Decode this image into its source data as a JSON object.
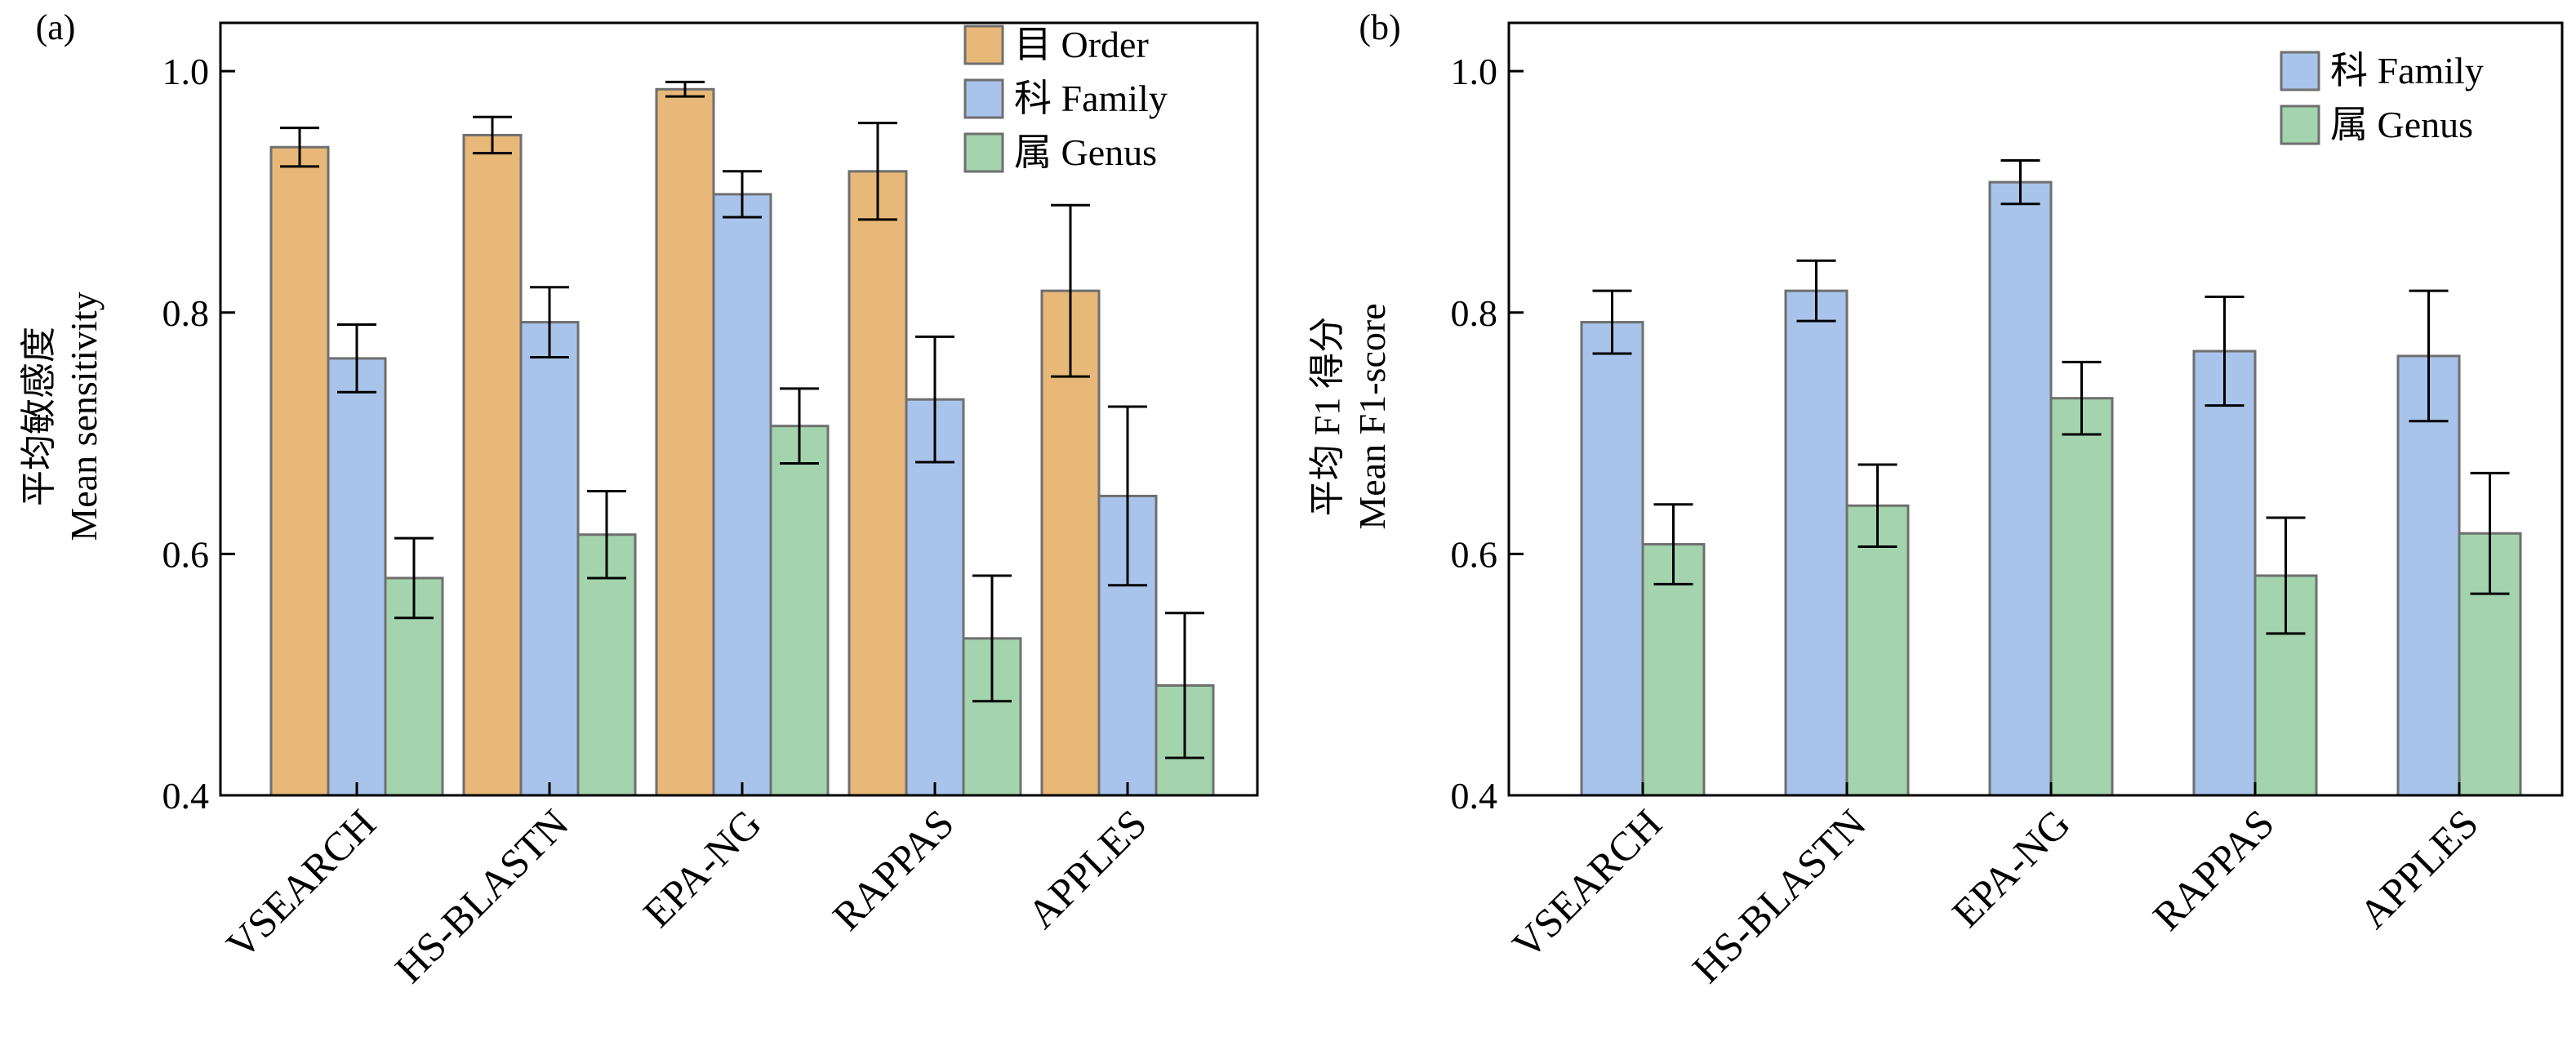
{
  "chart_data": [
    {
      "type": "bar",
      "panel_label": "(a)",
      "categories": [
        "VSEARCH",
        "HS-BLASTN",
        "EPA-NG",
        "RAPPAS",
        "APPLES"
      ],
      "ylabel_cn": "平均敏感度",
      "ylabel": "Mean sensitivity",
      "ylim": [
        0.4,
        1.04
      ],
      "yticks": [
        0.4,
        0.6,
        0.8,
        1.0
      ],
      "ytick_labels": [
        "0.4",
        "0.6",
        "0.8",
        "1.0"
      ],
      "grid": false,
      "legend_position": "top-right",
      "series": [
        {
          "name": "目 Order",
          "color": "#e8b878",
          "values": [
            0.937,
            0.947,
            0.985,
            0.917,
            0.818
          ],
          "errors": [
            0.016,
            0.015,
            0.006,
            0.04,
            0.071
          ]
        },
        {
          "name": "科 Family",
          "color": "#a9c4ea",
          "values": [
            0.762,
            0.792,
            0.898,
            0.728,
            0.648
          ],
          "errors": [
            0.028,
            0.029,
            0.019,
            0.052,
            0.074
          ]
        },
        {
          "name": "属 Genus",
          "color": "#a3d4ad",
          "values": [
            0.58,
            0.616,
            0.706,
            0.53,
            0.491
          ],
          "errors": [
            0.033,
            0.036,
            0.031,
            0.052,
            0.06
          ]
        }
      ]
    },
    {
      "type": "bar",
      "panel_label": "(b)",
      "categories": [
        "VSEARCH",
        "HS-BLASTN",
        "EPA-NG",
        "RAPPAS",
        "APPLES"
      ],
      "ylabel_cn": "平均 F1 得分",
      "ylabel": "Mean F1-score",
      "ylim": [
        0.4,
        1.04
      ],
      "yticks": [
        0.4,
        0.6,
        0.8,
        1.0
      ],
      "ytick_labels": [
        "0.4",
        "0.6",
        "0.8",
        "1.0"
      ],
      "grid": false,
      "legend_position": "top-right",
      "series": [
        {
          "name": "科 Family",
          "color": "#a9c4ea",
          "values": [
            0.792,
            0.818,
            0.908,
            0.768,
            0.764
          ],
          "errors": [
            0.026,
            0.025,
            0.018,
            0.045,
            0.054
          ]
        },
        {
          "name": "属 Genus",
          "color": "#a3d4ad",
          "values": [
            0.608,
            0.64,
            0.729,
            0.582,
            0.617
          ],
          "errors": [
            0.033,
            0.034,
            0.03,
            0.048,
            0.05
          ]
        }
      ]
    }
  ]
}
